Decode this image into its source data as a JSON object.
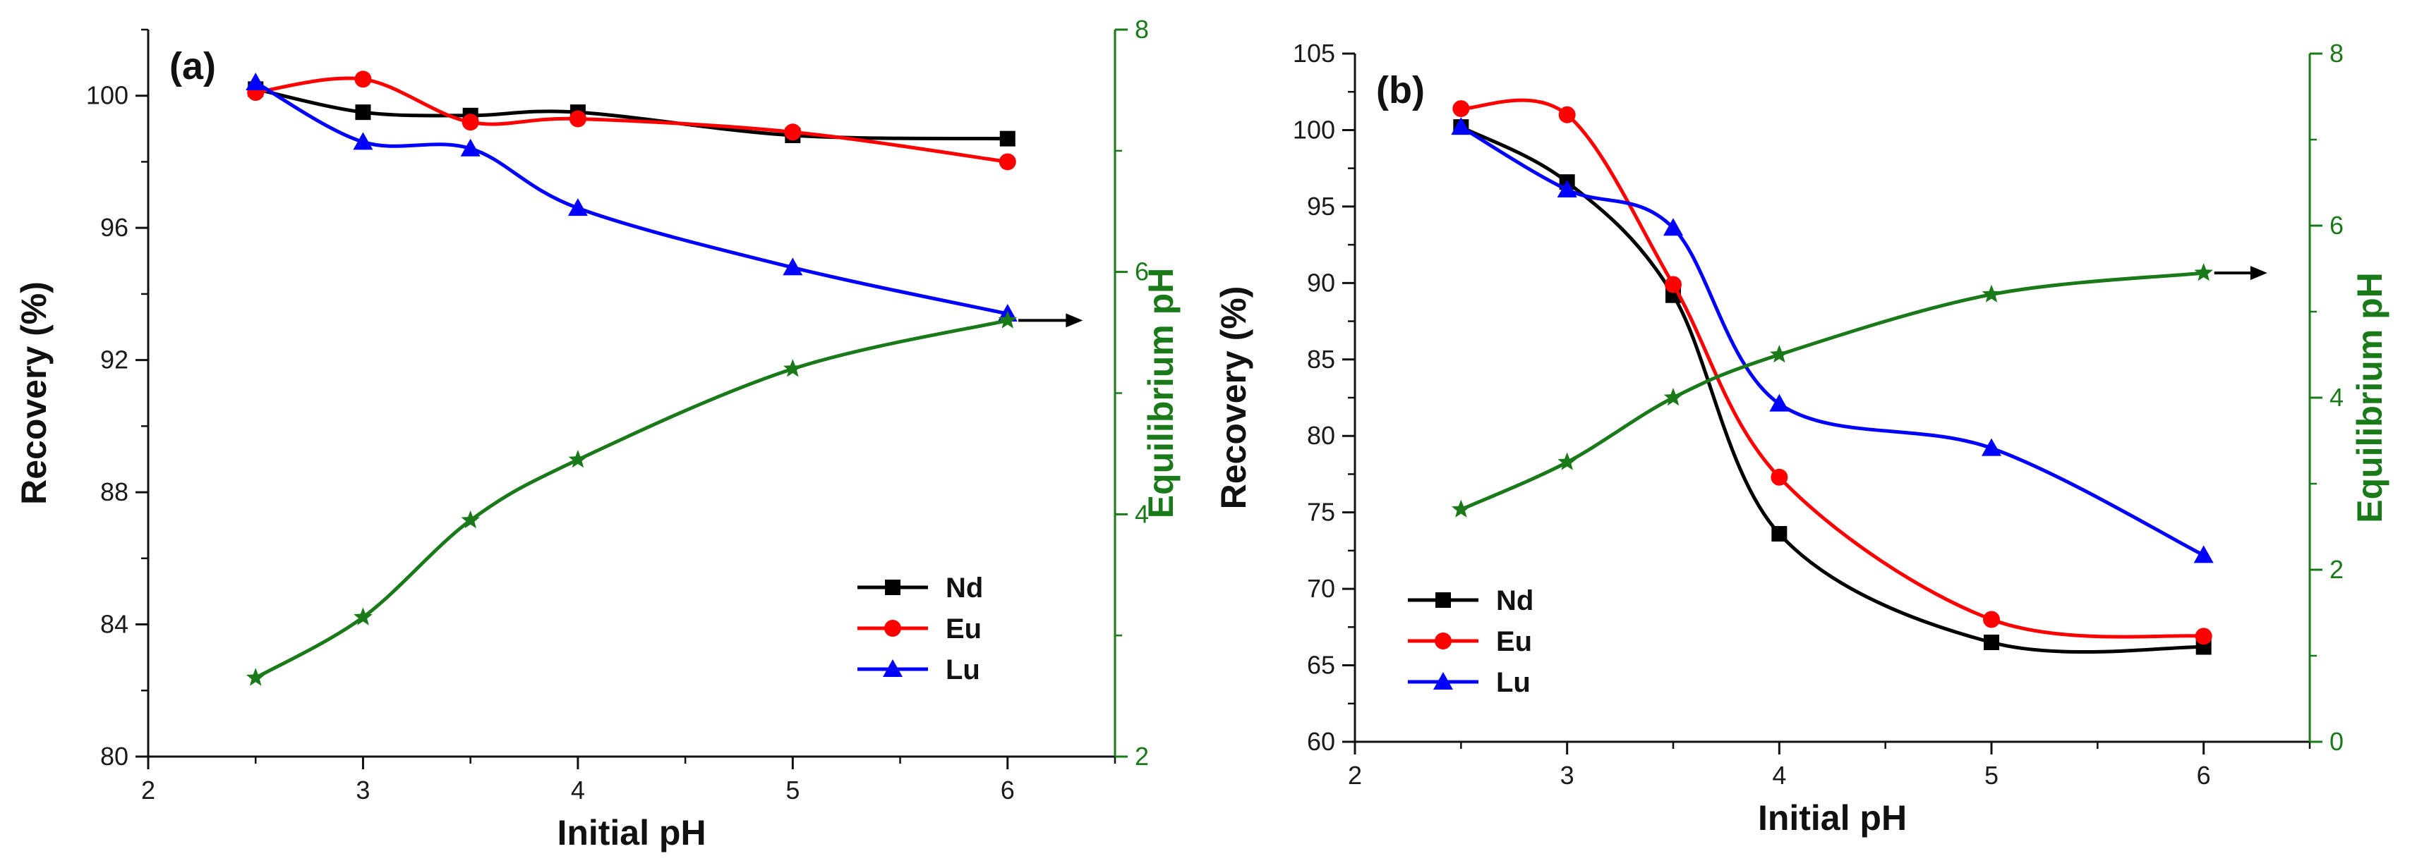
{
  "colors": {
    "Nd": "#000000",
    "Eu": "#ff0000",
    "Lu": "#0000ff",
    "equilibrium": "#1a7a1a",
    "axis": "#111111"
  },
  "chart_data": [
    {
      "type": "line",
      "panel_label": "(a)",
      "xlabel": "Initial pH",
      "ylabel": "Recovery (%)",
      "y2label": "Equilibrium pH",
      "xlim": [
        2,
        6.5
      ],
      "ylim": [
        80,
        102
      ],
      "y2lim": [
        2,
        8
      ],
      "xticks": [
        2,
        3,
        4,
        5,
        6
      ],
      "yticks": [
        80,
        84,
        88,
        92,
        96,
        100
      ],
      "y2ticks": [
        2,
        4,
        6,
        8
      ],
      "legend_position": "bottom-right",
      "x": [
        2.5,
        3,
        3.5,
        4,
        5,
        6
      ],
      "series": [
        {
          "name": "Nd",
          "marker": "square",
          "axis": "left",
          "values": [
            100.2,
            99.5,
            99.4,
            99.5,
            98.8,
            98.7
          ]
        },
        {
          "name": "Eu",
          "marker": "circle",
          "axis": "left",
          "values": [
            100.1,
            100.5,
            99.2,
            99.3,
            98.9,
            98.0
          ]
        },
        {
          "name": "Lu",
          "marker": "triangle",
          "axis": "left",
          "values": [
            100.4,
            98.6,
            98.4,
            96.6,
            94.8,
            93.4
          ]
        },
        {
          "name": "",
          "marker": "star",
          "axis": "right",
          "values": [
            2.65,
            3.15,
            3.95,
            4.45,
            5.2,
            5.6
          ]
        }
      ],
      "annotations": [
        {
          "type": "arrow",
          "from_x": 6.05,
          "to_x": 6.35,
          "y2": 5.6
        }
      ]
    },
    {
      "type": "line",
      "panel_label": "(b)",
      "xlabel": "Initial pH",
      "ylabel": "Recovery (%)",
      "y2label": "Equilibrium pH",
      "xlim": [
        2,
        6.5
      ],
      "ylim": [
        60,
        105
      ],
      "y2lim": [
        0,
        8
      ],
      "xticks": [
        2,
        3,
        4,
        5,
        6
      ],
      "yticks": [
        60,
        65,
        70,
        75,
        80,
        85,
        90,
        95,
        100,
        105
      ],
      "y2ticks": [
        0,
        2,
        4,
        6,
        8
      ],
      "legend_position": "bottom-left",
      "x": [
        2.5,
        3,
        3.5,
        4,
        5,
        6
      ],
      "series": [
        {
          "name": "Nd",
          "marker": "square",
          "axis": "left",
          "values": [
            100.2,
            96.6,
            89.2,
            73.6,
            66.5,
            66.2
          ]
        },
        {
          "name": "Eu",
          "marker": "circle",
          "axis": "left",
          "values": [
            101.4,
            101.0,
            89.9,
            77.3,
            68.0,
            66.9
          ]
        },
        {
          "name": "Lu",
          "marker": "triangle",
          "axis": "left",
          "values": [
            100.2,
            96.1,
            93.6,
            82.1,
            79.2,
            72.2
          ]
        },
        {
          "name": "",
          "marker": "star",
          "axis": "right",
          "values": [
            2.7,
            3.25,
            4.0,
            4.5,
            5.2,
            5.45
          ]
        }
      ],
      "annotations": [
        {
          "type": "arrow",
          "from_x": 6.05,
          "to_x": 6.3,
          "y2": 5.45
        }
      ]
    }
  ]
}
